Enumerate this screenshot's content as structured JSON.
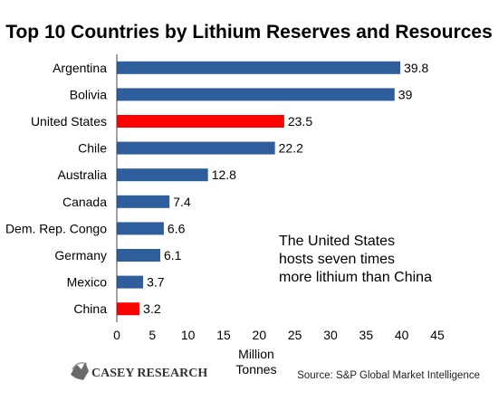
{
  "chart_data": {
    "type": "bar",
    "orientation": "horizontal",
    "title": "Top 10 Countries by Lithium Reserves and Resources",
    "categories": [
      "Argentina",
      "Bolivia",
      "United States",
      "Chile",
      "Australia",
      "Canada",
      "Dem. Rep. Congo",
      "Germany",
      "Mexico",
      "China"
    ],
    "values": [
      39.8,
      39,
      23.5,
      22.2,
      12.8,
      7.4,
      6.6,
      6.1,
      3.7,
      3.2
    ],
    "data_labels": [
      "39.8",
      "39",
      "23.5",
      "22.2",
      "12.8",
      "7.4",
      "6.6",
      "6.1",
      "3.7",
      "3.2"
    ],
    "highlight": [
      "United States",
      "China"
    ],
    "colors": {
      "default": "#2e5e9c",
      "highlight": "#ff0000"
    },
    "xlabel": [
      "Million",
      "Tonnes"
    ],
    "xlim": [
      0,
      45
    ],
    "xticks": [
      0,
      5,
      10,
      15,
      20,
      25,
      30,
      35,
      40,
      45
    ],
    "xtick_labels": [
      "0",
      "5",
      "10",
      "15",
      "20",
      "25",
      "30",
      "35",
      "40",
      "45"
    ],
    "grid": false,
    "legend": "none",
    "annotation": [
      "The United States",
      "hosts seven times",
      "more lithium than China"
    ]
  },
  "footer": {
    "logo": "CASEY RESEARCH",
    "source": "Source: S&P Global Market Intelligence"
  }
}
